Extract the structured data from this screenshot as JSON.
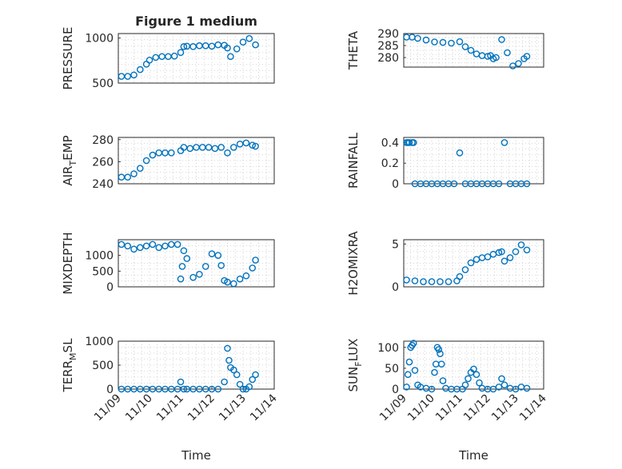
{
  "figure_title": "Figure 1 medium",
  "chart_data": [
    {
      "type": "scatter",
      "ylabel": "PRESSURE",
      "title": "Figure 1 medium",
      "ylim": [
        500,
        1050
      ],
      "yticks": [
        500,
        1000
      ],
      "xlim": [
        0,
        5
      ],
      "xticks": [],
      "series": [
        {
          "x": [
            0.1,
            0.3,
            0.5,
            0.7,
            0.9,
            1.0,
            1.2,
            1.4,
            1.6,
            1.8,
            2.0,
            2.1,
            2.2,
            2.4,
            2.6,
            2.8,
            3.0,
            3.2,
            3.4,
            3.5,
            3.6,
            3.8,
            4.0,
            4.2,
            4.4
          ],
          "y": [
            575,
            575,
            590,
            650,
            710,
            755,
            785,
            795,
            795,
            800,
            840,
            905,
            910,
            905,
            915,
            915,
            910,
            925,
            920,
            890,
            795,
            880,
            955,
            995,
            925
          ]
        }
      ]
    },
    {
      "type": "scatter",
      "ylabel": "THETA",
      "ylim": [
        276,
        290
      ],
      "yticks": [
        280,
        285,
        290
      ],
      "xlim": [
        0,
        5
      ],
      "xticks": [],
      "series": [
        {
          "x": [
            0.1,
            0.3,
            0.5,
            0.8,
            1.1,
            1.4,
            1.7,
            2.0,
            2.2,
            2.4,
            2.6,
            2.8,
            3.0,
            3.1,
            3.2,
            3.3,
            3.5,
            3.7,
            3.9,
            4.1,
            4.3,
            4.4
          ],
          "y": [
            288.5,
            288.5,
            288,
            287.3,
            286.5,
            286.3,
            286,
            286.6,
            284.5,
            283,
            281.5,
            280.8,
            280.5,
            280.8,
            279.5,
            280,
            287.5,
            282,
            276.5,
            277.5,
            279.5,
            280.5
          ]
        }
      ]
    },
    {
      "type": "scatter",
      "ylabel": "AIR_TEMP",
      "ylim": [
        240,
        282
      ],
      "yticks": [
        240,
        260,
        280
      ],
      "xlim": [
        0,
        5
      ],
      "xticks": [],
      "series": [
        {
          "x": [
            0.1,
            0.3,
            0.5,
            0.7,
            0.9,
            1.1,
            1.3,
            1.5,
            1.7,
            2.0,
            2.1,
            2.3,
            2.5,
            2.7,
            2.9,
            3.1,
            3.3,
            3.5,
            3.7,
            3.9,
            4.1,
            4.3,
            4.4
          ],
          "y": [
            246,
            246,
            249,
            254,
            261,
            266,
            268,
            268,
            268,
            270,
            273,
            272,
            273,
            273,
            273,
            272,
            273,
            268,
            273,
            276,
            277,
            275,
            274
          ]
        }
      ]
    },
    {
      "type": "scatter",
      "ylabel": "RAINFALL",
      "ylim": [
        0,
        0.45
      ],
      "yticks": [
        0,
        0.2,
        0.4
      ],
      "xlim": [
        0,
        5
      ],
      "xticks": [],
      "series": [
        {
          "x": [
            0.1,
            0.15,
            0.2,
            0.3,
            0.35,
            0.4,
            0.6,
            0.8,
            1.0,
            1.2,
            1.4,
            1.6,
            1.8,
            2.0,
            2.2,
            2.4,
            2.6,
            2.8,
            3.0,
            3.2,
            3.4,
            3.6,
            3.8,
            4.0,
            4.2,
            4.4
          ],
          "y": [
            0.4,
            0.4,
            0.4,
            0.4,
            0.4,
            0,
            0,
            0,
            0,
            0,
            0,
            0,
            0,
            0.3,
            0,
            0,
            0,
            0,
            0,
            0,
            0,
            0.4,
            0,
            0,
            0,
            0
          ]
        }
      ]
    },
    {
      "type": "scatter",
      "ylabel": "MIXDEPTH",
      "ylim": [
        0,
        1500
      ],
      "yticks": [
        0,
        500,
        1000
      ],
      "xlim": [
        0,
        5
      ],
      "xticks": [],
      "series": [
        {
          "x": [
            0.1,
            0.3,
            0.5,
            0.7,
            0.9,
            1.1,
            1.3,
            1.5,
            1.7,
            1.9,
            2.0,
            2.05,
            2.1,
            2.2,
            2.4,
            2.6,
            2.8,
            3.0,
            3.2,
            3.3,
            3.4,
            3.5,
            3.7,
            3.9,
            4.1,
            4.3,
            4.4
          ],
          "y": [
            1350,
            1300,
            1200,
            1250,
            1300,
            1350,
            1250,
            1300,
            1350,
            1350,
            250,
            650,
            1150,
            900,
            300,
            400,
            650,
            1050,
            1000,
            680,
            200,
            150,
            100,
            250,
            350,
            600,
            850
          ]
        }
      ]
    },
    {
      "type": "scatter",
      "ylabel": "H2OMIXRA",
      "ylim": [
        0,
        5.5
      ],
      "yticks": [
        0,
        5
      ],
      "xlim": [
        0,
        5
      ],
      "xticks": [],
      "series": [
        {
          "x": [
            0.1,
            0.4,
            0.7,
            1.0,
            1.3,
            1.6,
            1.9,
            2.0,
            2.2,
            2.4,
            2.6,
            2.8,
            3.0,
            3.2,
            3.4,
            3.5,
            3.6,
            3.8,
            4.0,
            4.2,
            4.4
          ],
          "y": [
            0.8,
            0.7,
            0.6,
            0.6,
            0.6,
            0.6,
            0.7,
            1.2,
            2.0,
            2.8,
            3.2,
            3.4,
            3.5,
            3.8,
            4.0,
            4.1,
            3.0,
            3.4,
            4.1,
            4.9,
            4.3
          ]
        }
      ]
    },
    {
      "type": "scatter",
      "ylabel": "TERR_MSL",
      "ylim": [
        0,
        1000
      ],
      "yticks": [
        0,
        500,
        1000
      ],
      "xlim": [
        0,
        5
      ],
      "xticks": [
        0,
        1,
        2,
        3,
        4,
        5
      ],
      "xticklabels": [
        "11/09",
        "11/10",
        "11/11",
        "11/12",
        "11/13",
        "11/14"
      ],
      "xlabel": "Time",
      "series": [
        {
          "x": [
            0.1,
            0.3,
            0.5,
            0.7,
            0.9,
            1.1,
            1.3,
            1.5,
            1.7,
            1.9,
            2.0,
            2.1,
            2.2,
            2.4,
            2.6,
            2.8,
            3.0,
            3.2,
            3.4,
            3.5,
            3.55,
            3.6,
            3.7,
            3.8,
            3.9,
            4.0,
            4.1,
            4.2,
            4.3,
            4.4
          ],
          "y": [
            0,
            0,
            0,
            0,
            0,
            0,
            0,
            0,
            0,
            0,
            150,
            0,
            0,
            0,
            0,
            0,
            0,
            0,
            150,
            850,
            600,
            450,
            400,
            300,
            100,
            0,
            0,
            50,
            200,
            300
          ]
        }
      ]
    },
    {
      "type": "scatter",
      "ylabel": "SUN_FLUX",
      "ylim": [
        0,
        115
      ],
      "yticks": [
        0,
        50,
        100
      ],
      "xlim": [
        0,
        5
      ],
      "xticks": [
        0,
        1,
        2,
        3,
        4,
        5
      ],
      "xticklabels": [
        "11/09",
        "11/10",
        "11/11",
        "11/12",
        "11/13",
        "11/14"
      ],
      "xlabel": "Time",
      "series": [
        {
          "x": [
            0.1,
            0.15,
            0.2,
            0.25,
            0.3,
            0.35,
            0.4,
            0.5,
            0.6,
            0.8,
            1.0,
            1.1,
            1.15,
            1.2,
            1.25,
            1.3,
            1.35,
            1.4,
            1.5,
            1.7,
            1.9,
            2.1,
            2.2,
            2.3,
            2.4,
            2.5,
            2.6,
            2.7,
            2.8,
            3.0,
            3.2,
            3.4,
            3.5,
            3.6,
            3.8,
            4.0,
            4.2,
            4.4
          ],
          "y": [
            5,
            35,
            65,
            100,
            105,
            110,
            45,
            10,
            5,
            2,
            0,
            40,
            60,
            100,
            95,
            85,
            60,
            20,
            2,
            0,
            0,
            0,
            10,
            25,
            40,
            48,
            35,
            15,
            2,
            0,
            0,
            5,
            25,
            10,
            2,
            0,
            5,
            2
          ]
        }
      ]
    }
  ]
}
